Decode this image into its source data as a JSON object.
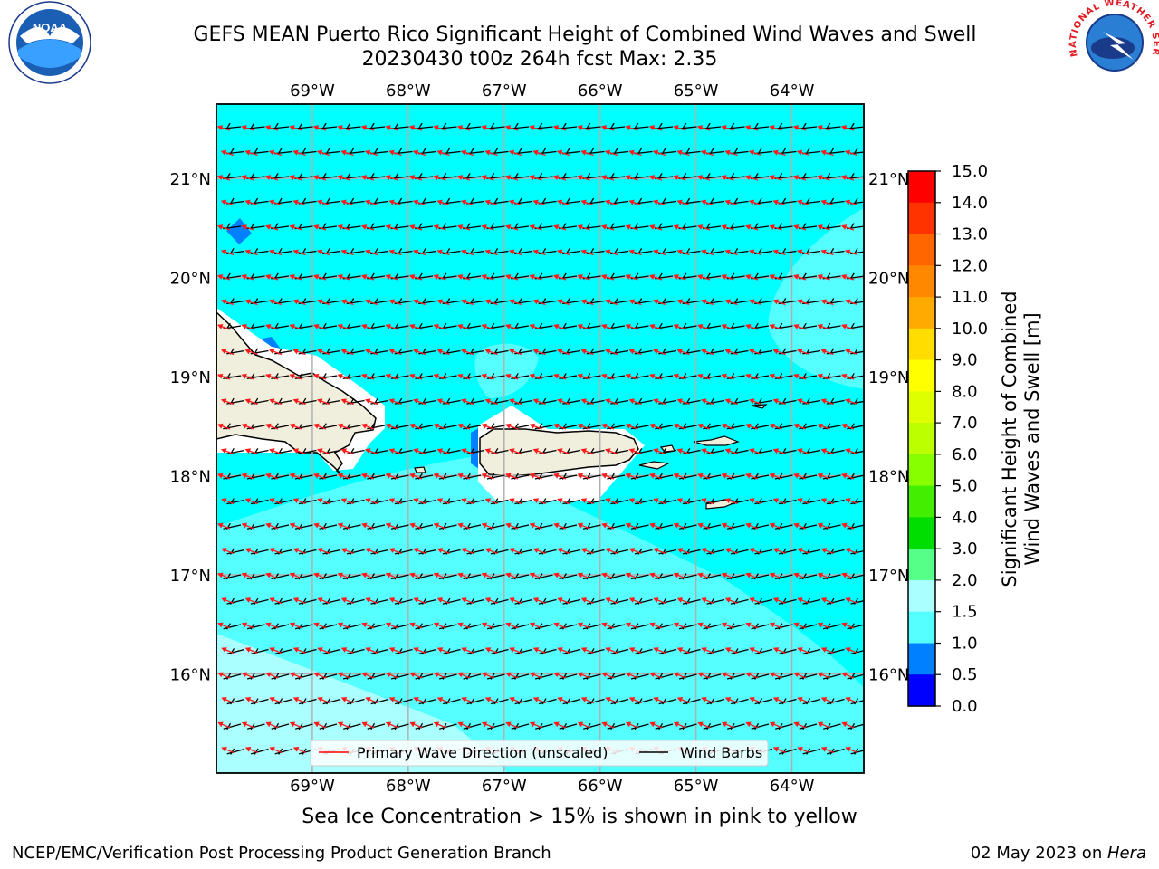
{
  "title": {
    "line1": "GEFS MEAN Puerto Rico Significant Height of Combined Wind Waves and Swell",
    "line2": "20230430 t00z 264h fcst   Max: 2.35"
  },
  "map": {
    "lon_ticks": [
      "69°W",
      "68°W",
      "67°W",
      "66°W",
      "65°W",
      "64°W"
    ],
    "lat_ticks": [
      "21°N",
      "20°N",
      "19°N",
      "18°N",
      "17°N",
      "16°N"
    ],
    "lon_range": [
      -70.0,
      -63.25
    ],
    "lat_range": [
      15.0,
      21.75
    ],
    "ocean_color": "#00ffff",
    "land_color": "#f0eedc"
  },
  "legend": {
    "wave_direction": "Primary Wave Direction (unscaled)",
    "wind_barbs": "Wind Barbs"
  },
  "colorbar": {
    "label_line1": "Significant Height of Combined",
    "label_line2": "Wind Waves and Swell [m]",
    "ticks": [
      "15.0",
      "14.0",
      "13.0",
      "12.0",
      "11.0",
      "10.0",
      "9.0",
      "8.0",
      "7.0",
      "6.0",
      "5.0",
      "4.0",
      "3.0",
      "2.0",
      "1.5",
      "1.0",
      "0.5",
      "0.0"
    ],
    "colors": [
      "#ff0000",
      "#ff3300",
      "#ff6600",
      "#ff8800",
      "#ffaa00",
      "#ffdd00",
      "#ffff00",
      "#ddff00",
      "#bbff00",
      "#88ff00",
      "#44ee00",
      "#00dd00",
      "#55ff88",
      "#aaffff",
      "#55ffff",
      "#00ffff",
      "#0080ff",
      "#0000ff"
    ]
  },
  "sea_ice_note": "Sea Ice Concentration > 15% is shown in pink to yellow",
  "footer": {
    "left": "NCEP/EMC/Verification Post Processing Product Generation Branch",
    "date": "02 May 2023 on ",
    "machine": "Hera"
  },
  "logos": {
    "noaa": "NOAA",
    "nws": "NATIONAL WEATHER SERVICE"
  }
}
